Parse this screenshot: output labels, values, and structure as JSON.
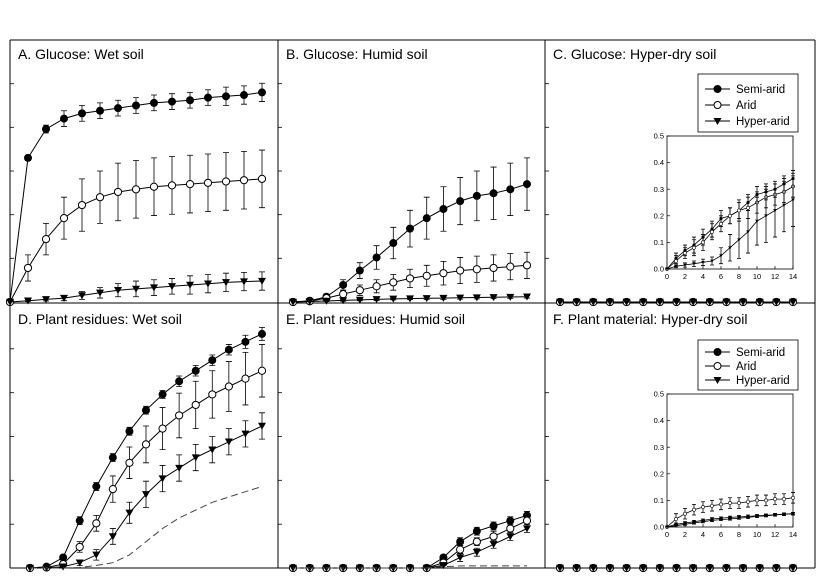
{
  "chart_data": [
    {
      "panel": "A",
      "title": "A. Glucose: Wet soil",
      "type": "line",
      "x": [
        0,
        1,
        2,
        3,
        4,
        5,
        6,
        7,
        8,
        9,
        10,
        11,
        12,
        13,
        14
      ],
      "ylim": [
        0,
        1.0
      ],
      "series": [
        {
          "name": "Semi-arid",
          "marker": "filled-circle",
          "values": [
            0,
            0.55,
            0.66,
            0.7,
            0.72,
            0.73,
            0.74,
            0.75,
            0.76,
            0.765,
            0.77,
            0.78,
            0.785,
            0.79,
            0.8
          ],
          "errors": [
            0,
            0.01,
            0.015,
            0.03,
            0.03,
            0.03,
            0.03,
            0.03,
            0.03,
            0.03,
            0.03,
            0.03,
            0.035,
            0.035,
            0.035
          ]
        },
        {
          "name": "Arid",
          "marker": "open-circle",
          "values": [
            0,
            0.13,
            0.24,
            0.32,
            0.37,
            0.4,
            0.42,
            0.43,
            0.44,
            0.445,
            0.45,
            0.455,
            0.46,
            0.465,
            0.47
          ],
          "errors": [
            0,
            0.05,
            0.06,
            0.08,
            0.1,
            0.1,
            0.11,
            0.11,
            0.11,
            0.11,
            0.11,
            0.11,
            0.11,
            0.11,
            0.11
          ]
        },
        {
          "name": "Hyper-arid",
          "marker": "filled-triangle-down",
          "values": [
            0,
            0.005,
            0.01,
            0.015,
            0.025,
            0.035,
            0.045,
            0.05,
            0.055,
            0.06,
            0.065,
            0.07,
            0.075,
            0.078,
            0.08
          ],
          "errors": [
            0,
            0.003,
            0.006,
            0.01,
            0.015,
            0.02,
            0.025,
            0.03,
            0.03,
            0.03,
            0.035,
            0.035,
            0.035,
            0.035,
            0.035
          ]
        }
      ]
    },
    {
      "panel": "B",
      "title": "B. Glucose: Humid soil",
      "type": "line",
      "x": [
        0,
        1,
        2,
        3,
        4,
        5,
        6,
        7,
        8,
        9,
        10,
        11,
        12,
        13,
        14
      ],
      "ylim": [
        0,
        1.0
      ],
      "series": [
        {
          "name": "Semi-arid",
          "marker": "filled-circle",
          "values": [
            0,
            0.005,
            0.02,
            0.065,
            0.12,
            0.17,
            0.225,
            0.28,
            0.32,
            0.355,
            0.385,
            0.405,
            0.415,
            0.43,
            0.45
          ],
          "errors": [
            0,
            0.005,
            0.01,
            0.02,
            0.03,
            0.045,
            0.06,
            0.07,
            0.08,
            0.085,
            0.09,
            0.095,
            0.1,
            0.1,
            0.1
          ]
        },
        {
          "name": "Arid",
          "marker": "open-circle",
          "values": [
            0,
            0.003,
            0.015,
            0.03,
            0.045,
            0.06,
            0.075,
            0.09,
            0.1,
            0.11,
            0.12,
            0.125,
            0.13,
            0.135,
            0.14
          ],
          "errors": [
            0,
            0.003,
            0.01,
            0.015,
            0.02,
            0.025,
            0.03,
            0.035,
            0.04,
            0.045,
            0.05,
            0.05,
            0.05,
            0.05,
            0.05
          ]
        },
        {
          "name": "Hyper-arid",
          "marker": "filled-triangle-down",
          "values": [
            0,
            0.002,
            0.004,
            0.006,
            0.008,
            0.01,
            0.012,
            0.013,
            0.014,
            0.015,
            0.016,
            0.017,
            0.018,
            0.019,
            0.02
          ],
          "errors": [
            0,
            0.001,
            0.002,
            0.003,
            0.003,
            0.004,
            0.004,
            0.004,
            0.005,
            0.005,
            0.005,
            0.005,
            0.005,
            0.005,
            0.005
          ]
        }
      ]
    },
    {
      "panel": "C",
      "title": "C. Glucose: Hyper-dry soil",
      "type": "line",
      "x": [
        0,
        1,
        2,
        3,
        4,
        5,
        6,
        7,
        8,
        9,
        10,
        11,
        12,
        13,
        14
      ],
      "ylim": [
        0,
        1.0
      ],
      "series": [
        {
          "name": "Semi-arid",
          "marker": "filled-circle",
          "values": [
            0,
            0,
            0,
            0,
            0,
            0,
            0,
            0,
            0,
            0,
            0,
            0,
            0,
            0,
            0
          ]
        },
        {
          "name": "Arid",
          "marker": "open-circle",
          "values": [
            0,
            0,
            0,
            0,
            0,
            0,
            0,
            0,
            0,
            0,
            0,
            0,
            0,
            0,
            0
          ]
        },
        {
          "name": "Hyper-arid",
          "marker": "filled-triangle-down",
          "values": [
            0,
            0,
            0,
            0,
            0,
            0,
            0,
            0,
            0,
            0,
            0,
            0,
            0,
            0,
            0
          ]
        }
      ],
      "legend": [
        "Semi-arid",
        "Arid",
        "Hyper-arid"
      ],
      "inset": {
        "type": "line",
        "x": [
          0,
          1,
          2,
          3,
          4,
          5,
          6,
          7,
          8,
          9,
          10,
          11,
          12,
          13,
          14
        ],
        "xlim": [
          0,
          14
        ],
        "ylim": [
          0,
          0.5
        ],
        "xticks": [
          "0",
          "2",
          "4",
          "6",
          "8",
          "10",
          "12",
          "14"
        ],
        "yticks": [
          "0.0",
          "0.1",
          "0.2",
          "0.3",
          "0.4",
          "0.5"
        ],
        "series": [
          {
            "name": "Semi-arid",
            "marker": "filled-circle",
            "values": [
              0,
              0.04,
              0.07,
              0.09,
              0.12,
              0.15,
              0.19,
              0.2,
              0.22,
              0.25,
              0.28,
              0.29,
              0.3,
              0.32,
              0.34
            ],
            "errors": [
              0,
              0.02,
              0.02,
              0.03,
              0.03,
              0.03,
              0.03,
              0.03,
              0.03,
              0.03,
              0.03,
              0.03,
              0.03,
              0.03,
              0.03
            ]
          },
          {
            "name": "Arid",
            "marker": "open-circle",
            "values": [
              0,
              0.03,
              0.06,
              0.08,
              0.1,
              0.14,
              0.17,
              0.2,
              0.22,
              0.23,
              0.25,
              0.27,
              0.28,
              0.29,
              0.31
            ],
            "errors": [
              0,
              0.02,
              0.02,
              0.03,
              0.03,
              0.03,
              0.03,
              0.03,
              0.04,
              0.04,
              0.04,
              0.04,
              0.04,
              0.04,
              0.04
            ]
          },
          {
            "name": "Hyper-arid",
            "marker": "filled-triangle-down",
            "values": [
              0,
              0.01,
              0.015,
              0.02,
              0.025,
              0.03,
              0.05,
              0.08,
              0.11,
              0.14,
              0.18,
              0.2,
              0.22,
              0.24,
              0.26
            ],
            "errors": [
              0,
              0.005,
              0.008,
              0.01,
              0.012,
              0.015,
              0.03,
              0.05,
              0.07,
              0.08,
              0.09,
              0.1,
              0.1,
              0.1,
              0.1
            ]
          }
        ]
      }
    },
    {
      "panel": "D",
      "title": "D. Plant residues: Wet soil",
      "type": "line",
      "x": [
        0,
        1,
        2,
        3,
        4,
        5,
        6,
        7,
        8,
        9,
        10,
        11,
        12,
        13,
        14
      ],
      "ylim": [
        0,
        1.0
      ],
      "series": [
        {
          "name": "Semi-arid",
          "marker": "filled-circle",
          "values": [
            0,
            0.005,
            0.04,
            0.18,
            0.31,
            0.42,
            0.52,
            0.6,
            0.66,
            0.71,
            0.75,
            0.79,
            0.83,
            0.86,
            0.89
          ],
          "errors": [
            0,
            0.003,
            0.01,
            0.015,
            0.015,
            0.015,
            0.015,
            0.015,
            0.015,
            0.02,
            0.02,
            0.02,
            0.02,
            0.025,
            0.025
          ]
        },
        {
          "name": "Arid",
          "marker": "open-circle",
          "values": [
            0,
            0.002,
            0.015,
            0.08,
            0.17,
            0.3,
            0.4,
            0.47,
            0.53,
            0.58,
            0.62,
            0.66,
            0.69,
            0.72,
            0.75
          ],
          "errors": [
            0,
            0.002,
            0.01,
            0.02,
            0.03,
            0.05,
            0.06,
            0.07,
            0.08,
            0.085,
            0.09,
            0.09,
            0.095,
            0.1,
            0.1
          ]
        },
        {
          "name": "Hyper-arid",
          "marker": "filled-triangle-down",
          "values": [
            0,
            0.001,
            0.005,
            0.02,
            0.05,
            0.12,
            0.21,
            0.28,
            0.34,
            0.38,
            0.42,
            0.45,
            0.48,
            0.51,
            0.54
          ],
          "errors": [
            0,
            0.001,
            0.003,
            0.01,
            0.02,
            0.03,
            0.04,
            0.05,
            0.05,
            0.05,
            0.05,
            0.05,
            0.05,
            0.05,
            0.05
          ]
        },
        {
          "name": "",
          "style": "dashed",
          "values": [
            0,
            0,
            0,
            0.002,
            0.01,
            0.02,
            0.05,
            0.1,
            0.15,
            0.19,
            0.22,
            0.25,
            0.27,
            0.29,
            0.31
          ]
        }
      ]
    },
    {
      "panel": "E",
      "title": "E. Plant residues: Humid soil",
      "type": "line",
      "x": [
        0,
        1,
        2,
        3,
        4,
        5,
        6,
        7,
        8,
        9,
        10,
        11,
        12,
        13,
        14
      ],
      "ylim": [
        0,
        1.0
      ],
      "series": [
        {
          "name": "Semi-arid",
          "marker": "filled-circle",
          "values": [
            0,
            0,
            0,
            0,
            0,
            0,
            0,
            0,
            0,
            0.04,
            0.1,
            0.14,
            0.16,
            0.18,
            0.2
          ],
          "errors": [
            0,
            0,
            0,
            0,
            0,
            0,
            0,
            0,
            0,
            0.01,
            0.015,
            0.015,
            0.015,
            0.015,
            0.015
          ]
        },
        {
          "name": "Arid",
          "marker": "open-circle",
          "values": [
            0,
            0,
            0,
            0,
            0,
            0,
            0,
            0,
            0,
            0.02,
            0.07,
            0.1,
            0.12,
            0.15,
            0.18
          ],
          "errors": [
            0,
            0,
            0,
            0,
            0,
            0,
            0,
            0,
            0,
            0.01,
            0.015,
            0.015,
            0.02,
            0.02,
            0.02
          ]
        },
        {
          "name": "Hyper-arid",
          "marker": "filled-triangle-down",
          "values": [
            0,
            0,
            0,
            0,
            0,
            0,
            0,
            0,
            0,
            0.01,
            0.04,
            0.06,
            0.09,
            0.12,
            0.15
          ],
          "errors": [
            0,
            0,
            0,
            0,
            0,
            0,
            0,
            0,
            0,
            0.01,
            0.015,
            0.015,
            0.015,
            0.015,
            0.015
          ]
        },
        {
          "name": "",
          "style": "dashed",
          "values": [
            0,
            0,
            0,
            0,
            0,
            0,
            0,
            0,
            0,
            0.005,
            0.008,
            0.008,
            0.008,
            0.008,
            0.008
          ]
        }
      ]
    },
    {
      "panel": "F",
      "title": "F. Plant material: Hyper-dry soil",
      "type": "line",
      "x": [
        0,
        1,
        2,
        3,
        4,
        5,
        6,
        7,
        8,
        9,
        10,
        11,
        12,
        13,
        14
      ],
      "ylim": [
        0,
        1.0
      ],
      "series": [
        {
          "name": "Semi-arid",
          "marker": "filled-circle",
          "values": [
            0,
            0,
            0,
            0,
            0,
            0,
            0,
            0,
            0,
            0,
            0,
            0,
            0,
            0,
            0
          ]
        },
        {
          "name": "Arid",
          "marker": "open-circle",
          "values": [
            0,
            0,
            0,
            0,
            0,
            0,
            0,
            0,
            0,
            0,
            0,
            0,
            0,
            0,
            0
          ]
        },
        {
          "name": "Hyper-arid",
          "marker": "filled-triangle-down",
          "values": [
            0,
            0,
            0,
            0,
            0,
            0,
            0,
            0,
            0,
            0,
            0,
            0,
            0,
            0,
            0
          ]
        }
      ],
      "legend": [
        "Semi-arid",
        "Arid",
        "Hyper-arid"
      ],
      "inset": {
        "type": "line",
        "x": [
          0,
          1,
          2,
          3,
          4,
          5,
          6,
          7,
          8,
          9,
          10,
          11,
          12,
          13,
          14
        ],
        "xlim": [
          0,
          14
        ],
        "ylim": [
          0,
          0.5
        ],
        "xticks": [
          "0",
          "2",
          "4",
          "6",
          "8",
          "10",
          "12",
          "14"
        ],
        "yticks": [
          "0.0",
          "0.1",
          "0.2",
          "0.3",
          "0.4",
          "0.5"
        ],
        "series": [
          {
            "name": "Semi-arid",
            "marker": "filled-circle",
            "values": [
              0,
              0.01,
              0.015,
              0.02,
              0.025,
              0.03,
              0.033,
              0.036,
              0.038,
              0.04,
              0.042,
              0.044,
              0.046,
              0.048,
              0.05
            ],
            "errors": [
              0,
              0.005,
              0.005,
              0.005,
              0.005,
              0.005,
              0.005,
              0.005,
              0.005,
              0.005,
              0.005,
              0.005,
              0.005,
              0.005,
              0.005
            ]
          },
          {
            "name": "Arid",
            "marker": "open-circle",
            "values": [
              0,
              0.03,
              0.05,
              0.065,
              0.075,
              0.08,
              0.085,
              0.09,
              0.09,
              0.095,
              0.1,
              0.1,
              0.105,
              0.105,
              0.11
            ],
            "errors": [
              0,
              0.02,
              0.02,
              0.02,
              0.02,
              0.02,
              0.02,
              0.02,
              0.02,
              0.02,
              0.02,
              0.02,
              0.02,
              0.02,
              0.02
            ]
          },
          {
            "name": "Hyper-arid",
            "marker": "filled-triangle-down",
            "values": [
              0,
              0.005,
              0.01,
              0.015,
              0.02,
              0.025,
              0.028,
              0.03,
              0.033,
              0.036,
              0.04,
              0.042,
              0.045,
              0.048,
              0.05
            ],
            "errors": [
              0,
              0.004,
              0.004,
              0.004,
              0.004,
              0.004,
              0.004,
              0.004,
              0.004,
              0.004,
              0.004,
              0.004,
              0.004,
              0.004,
              0.004
            ]
          }
        ]
      }
    }
  ]
}
